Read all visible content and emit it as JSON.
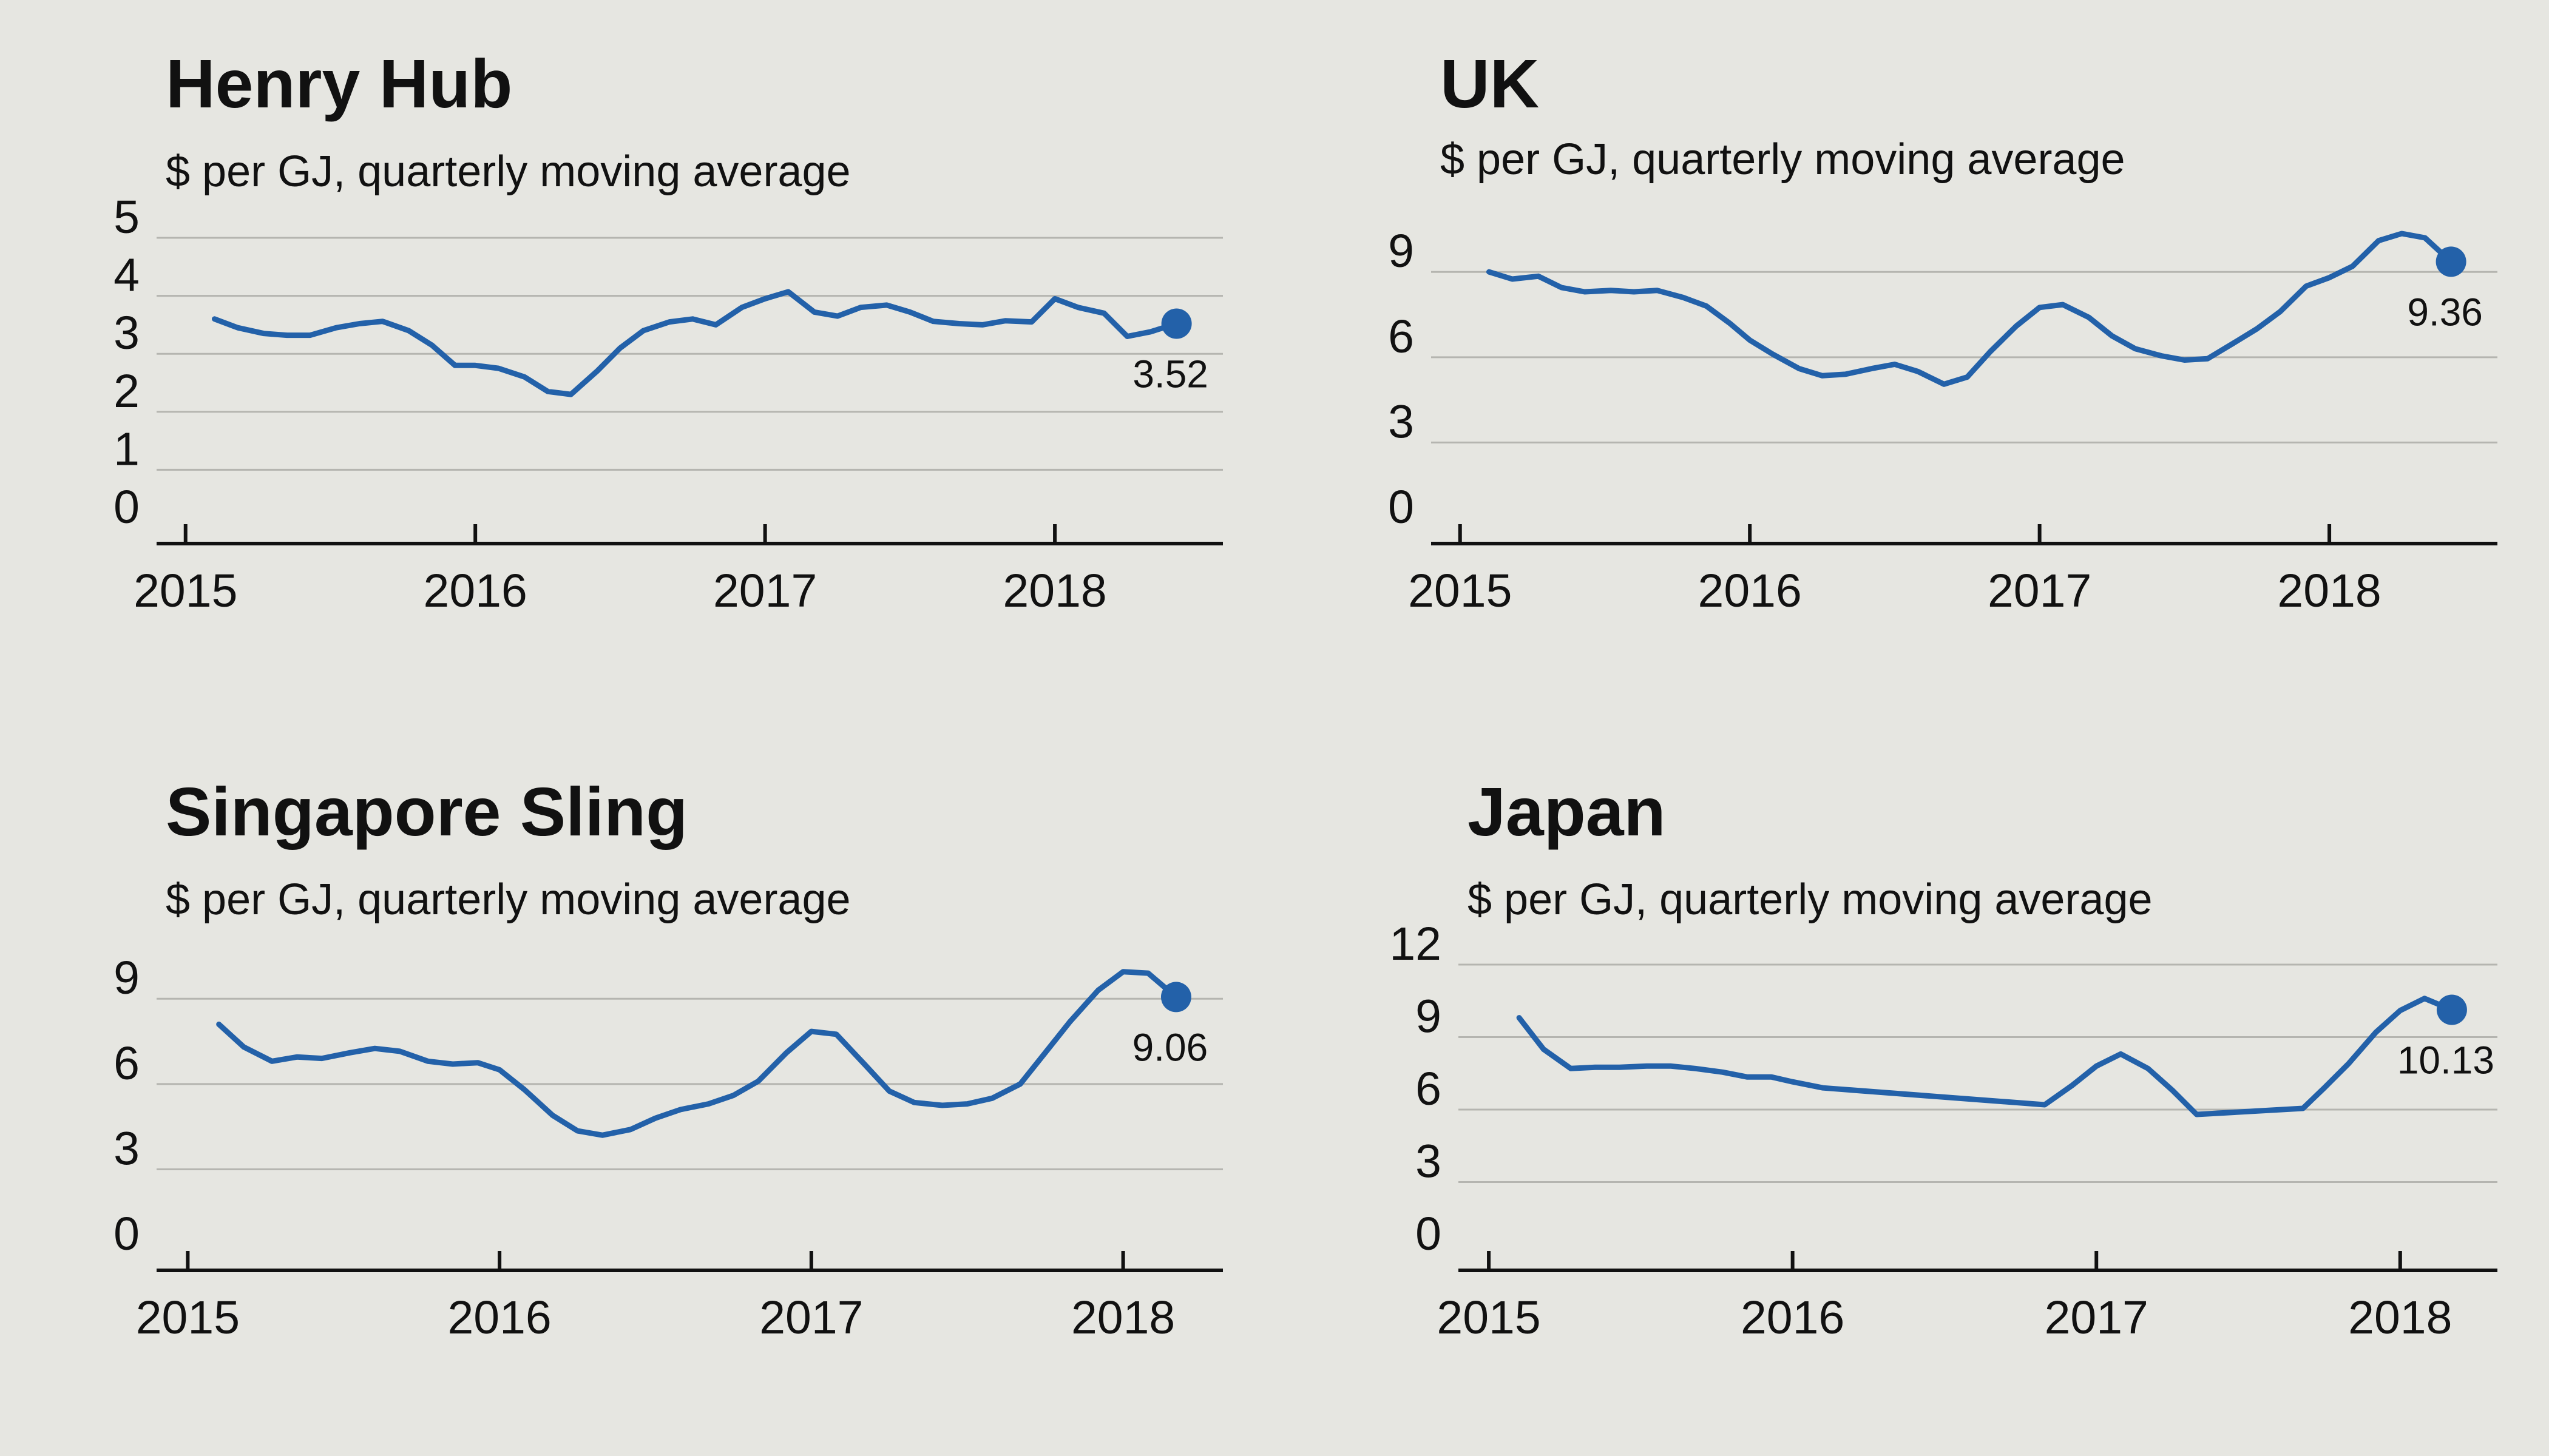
{
  "colors": {
    "background": "#e6e6e1",
    "series": "#2361a9",
    "grid": "#b5b5b0",
    "axis": "#111111"
  },
  "chart_data": [
    {
      "type": "line",
      "title": "Henry Hub",
      "subtitle": "$ per GJ, quarterly moving average",
      "ylim": [
        0,
        5
      ],
      "yticks": [
        0,
        1,
        2,
        3,
        4,
        5
      ],
      "xlim": [
        2014.9,
        2018.58
      ],
      "xticks": [
        2015,
        2016,
        2017,
        2018
      ],
      "grid": true,
      "end_label": "3.52",
      "series": [
        {
          "x": [
            2015.1,
            2015.18,
            2015.27,
            2015.35,
            2015.43,
            2015.52,
            2015.6,
            2015.68,
            2015.77,
            2015.85,
            2015.93,
            2016.0,
            2016.08,
            2016.17,
            2016.25,
            2016.33,
            2016.42,
            2016.5,
            2016.58,
            2016.67,
            2016.75,
            2016.83,
            2016.92,
            2017.0,
            2017.08,
            2017.17,
            2017.25,
            2017.33,
            2017.42,
            2017.5,
            2017.58,
            2017.67,
            2017.75,
            2017.83,
            2017.92,
            2018.0,
            2018.08,
            2018.17,
            2018.25,
            2018.33,
            2018.42
          ],
          "y": [
            3.6,
            3.45,
            3.35,
            3.32,
            3.32,
            3.45,
            3.52,
            3.56,
            3.4,
            3.15,
            2.8,
            2.8,
            2.75,
            2.6,
            2.35,
            2.3,
            2.7,
            3.1,
            3.4,
            3.55,
            3.6,
            3.5,
            3.8,
            3.95,
            4.07,
            3.72,
            3.65,
            3.8,
            3.84,
            3.72,
            3.56,
            3.52,
            3.5,
            3.57,
            3.55,
            3.95,
            3.8,
            3.7,
            3.3,
            3.38,
            3.52
          ]
        }
      ]
    },
    {
      "type": "line",
      "title": "UK",
      "subtitle": "$ per GJ, quarterly moving average",
      "ylim": [
        0,
        10.2
      ],
      "yticks": [
        0,
        3,
        6,
        9
      ],
      "xlim": [
        2014.9,
        2018.58
      ],
      "xticks": [
        2015,
        2016,
        2017,
        2018
      ],
      "grid": true,
      "end_label": "9.36",
      "series": [
        {
          "x": [
            2015.1,
            2015.18,
            2015.27,
            2015.35,
            2015.43,
            2015.52,
            2015.6,
            2015.68,
            2015.77,
            2015.85,
            2015.93,
            2016.0,
            2016.08,
            2016.17,
            2016.25,
            2016.33,
            2016.42,
            2016.5,
            2016.58,
            2016.67,
            2016.75,
            2016.83,
            2016.92,
            2017.0,
            2017.08,
            2017.17,
            2017.25,
            2017.33,
            2017.42,
            2017.5,
            2017.58,
            2017.67,
            2017.75,
            2017.83,
            2017.92,
            2018.0,
            2018.08,
            2018.17,
            2018.25,
            2018.33,
            2018.42
          ],
          "y": [
            9.0,
            8.75,
            8.85,
            8.45,
            8.3,
            8.35,
            8.3,
            8.35,
            8.1,
            7.8,
            7.2,
            6.6,
            6.1,
            5.6,
            5.35,
            5.4,
            5.6,
            5.75,
            5.5,
            5.05,
            5.3,
            6.2,
            7.1,
            7.75,
            7.85,
            7.4,
            6.75,
            6.3,
            6.05,
            5.9,
            5.95,
            6.5,
            7.0,
            7.6,
            8.5,
            8.8,
            9.2,
            10.1,
            10.35,
            10.2,
            9.36
          ]
        }
      ]
    },
    {
      "type": "line",
      "title": "Singapore Sling",
      "subtitle": "$ per GJ, quarterly moving average",
      "ylim": [
        0,
        10.2
      ],
      "yticks": [
        0,
        3,
        6,
        9
      ],
      "xlim": [
        2014.9,
        2018.32
      ],
      "xticks": [
        2015,
        2016,
        2017,
        2018
      ],
      "grid": true,
      "end_label": "9.06",
      "series": [
        {
          "x": [
            2015.1,
            2015.18,
            2015.27,
            2015.35,
            2015.43,
            2015.52,
            2015.6,
            2015.68,
            2015.77,
            2015.85,
            2015.93,
            2016.0,
            2016.08,
            2016.17,
            2016.25,
            2016.33,
            2016.42,
            2016.5,
            2016.58,
            2016.67,
            2016.75,
            2016.83,
            2016.92,
            2017.0,
            2017.08,
            2017.17,
            2017.25,
            2017.33,
            2017.42,
            2017.5,
            2017.58,
            2017.67,
            2017.75,
            2017.83,
            2017.92,
            2018.0,
            2018.08,
            2018.17
          ],
          "y": [
            8.1,
            7.3,
            6.8,
            6.95,
            6.9,
            7.1,
            7.25,
            7.15,
            6.8,
            6.7,
            6.75,
            6.5,
            5.8,
            4.9,
            4.35,
            4.2,
            4.4,
            4.8,
            5.1,
            5.3,
            5.6,
            6.1,
            7.1,
            7.85,
            7.75,
            6.7,
            5.75,
            5.35,
            5.25,
            5.3,
            5.5,
            6.0,
            7.1,
            8.2,
            9.3,
            9.95,
            9.9,
            9.06
          ]
        }
      ]
    },
    {
      "type": "line",
      "title": "Japan",
      "subtitle": "$ per GJ, quarterly moving average",
      "ylim": [
        0,
        12
      ],
      "yticks": [
        0,
        3,
        6,
        9,
        12
      ],
      "xlim": [
        2014.9,
        2018.32
      ],
      "xticks": [
        2015,
        2016,
        2017,
        2018
      ],
      "grid": true,
      "end_label": "10.13",
      "series": [
        {
          "x": [
            2015.1,
            2015.18,
            2015.27,
            2015.35,
            2015.43,
            2015.52,
            2015.6,
            2015.68,
            2015.77,
            2015.85,
            2015.93,
            2016.0,
            2016.1,
            2016.83,
            2016.92,
            2017.0,
            2017.08,
            2017.17,
            2017.25,
            2017.33,
            2017.68,
            2017.75,
            2017.83,
            2017.92,
            2018.0,
            2018.08,
            2018.17
          ],
          "y": [
            9.8,
            8.5,
            7.7,
            7.75,
            7.75,
            7.8,
            7.8,
            7.7,
            7.55,
            7.35,
            7.35,
            7.15,
            6.9,
            6.2,
            7.0,
            7.8,
            8.3,
            7.7,
            6.8,
            5.8,
            6.05,
            6.9,
            7.9,
            9.2,
            10.1,
            10.6,
            10.13
          ]
        }
      ]
    }
  ]
}
